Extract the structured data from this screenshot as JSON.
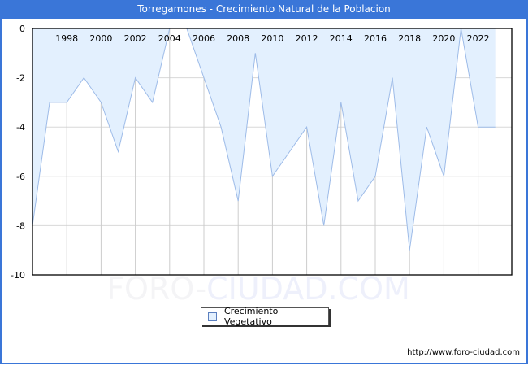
{
  "title": "Torregamones - Crecimiento Natural de la Poblacion",
  "watermark": {
    "part1": "FORO-",
    "part2": "CIUDAD.COM"
  },
  "legend": {
    "label": "Crecimiento Vegetativo"
  },
  "footer": {
    "url": "http://www.foro-ciudad.com"
  },
  "colors": {
    "header": "#3a76d8",
    "fill": "#e3f0fe",
    "line": "#9dbbe8",
    "grid": "#d8d8d8"
  },
  "chart_data": {
    "type": "area",
    "title": "Torregamones - Crecimiento Natural de la Poblacion",
    "xlabel": "",
    "ylabel": "",
    "x": [
      1996,
      1997,
      1998,
      1999,
      2000,
      2001,
      2002,
      2003,
      2004,
      2005,
      2006,
      2007,
      2008,
      2009,
      2010,
      2011,
      2012,
      2013,
      2014,
      2015,
      2016,
      2017,
      2018,
      2019,
      2020,
      2021,
      2022,
      2023
    ],
    "series": [
      {
        "name": "Crecimiento Vegetativo",
        "values": [
          -8,
          -3,
          -3,
          -2,
          -3,
          -5,
          -2,
          -3,
          0,
          0,
          -2,
          -4,
          -7,
          -1,
          -6,
          -5,
          -4,
          -8,
          -3,
          -7,
          -6,
          -2,
          -9,
          -4,
          -6,
          0,
          -4,
          -4
        ]
      }
    ],
    "x_tick_labels": [
      "1998",
      "2000",
      "2002",
      "2004",
      "2006",
      "2008",
      "2010",
      "2012",
      "2014",
      "2016",
      "2018",
      "2020",
      "2022"
    ],
    "y_tick_labels": [
      "0",
      "-2",
      "-4",
      "-6",
      "-8",
      "-10"
    ],
    "ylim": [
      -10,
      0
    ],
    "xlim": [
      1996,
      2024
    ],
    "grid": true,
    "legend_position": "bottom-center"
  }
}
